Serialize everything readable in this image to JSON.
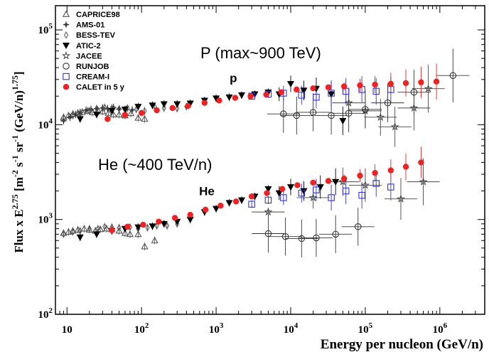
{
  "chart_data": {
    "type": "scatter",
    "xscale": "log",
    "yscale": "log",
    "xlim": [
      7,
      4000000
    ],
    "ylim": [
      100,
      180000
    ],
    "xlabel": "Energy per nucleon (GeV/n)",
    "ylabel_main": "Flux x E",
    "ylabel_exp": "2.75",
    "ylabel_unit": "[m",
    "ylabel_rest1": "-2",
    "ylabel_rest2": " s",
    "ylabel_rest3": "-1",
    "ylabel_rest4": " sr",
    "ylabel_rest5": "-1",
    "ylabel_rest6": " (GeV/n)",
    "ylabel_rest7": "1.75",
    "ylabel_rest8": "]",
    "x_ticks": [
      {
        "value": 10,
        "base": "10",
        "exp": ""
      },
      {
        "value": 100,
        "base": "10",
        "exp": "2"
      },
      {
        "value": 1000,
        "base": "10",
        "exp": "3"
      },
      {
        "value": 10000,
        "base": "10",
        "exp": "4"
      },
      {
        "value": 100000,
        "base": "10",
        "exp": "5"
      },
      {
        "value": 1000000,
        "base": "10",
        "exp": "6"
      }
    ],
    "y_ticks": [
      {
        "value": 100,
        "base": "10",
        "exp": "2"
      },
      {
        "value": 1000,
        "base": "10",
        "exp": "3"
      },
      {
        "value": 10000,
        "base": "10",
        "exp": "4"
      },
      {
        "value": 100000,
        "base": "10",
        "exp": "5"
      }
    ],
    "annotations": [
      {
        "id": "ann-p",
        "text": "P (max~900 TeV)"
      },
      {
        "id": "ann-he",
        "text": "He (~400 TeV/n)"
      },
      {
        "id": "lbl-p",
        "text": "p",
        "x": 1700,
        "y": 28000
      },
      {
        "id": "lbl-he",
        "text": "He",
        "x": 750,
        "y": 1800
      }
    ],
    "legend_position": "top-left",
    "series": [
      {
        "name": "CAPRICE98",
        "marker": "triangle-open",
        "color": "#555555",
        "points": [
          [
            9,
            12000
          ],
          [
            10.5,
            12500
          ],
          [
            12,
            13000
          ],
          [
            14,
            13300
          ],
          [
            16,
            13600
          ],
          [
            19,
            14000
          ],
          [
            22,
            13500
          ],
          [
            26,
            14200
          ],
          [
            30,
            13800
          ],
          [
            36,
            13300
          ],
          [
            42,
            12800
          ],
          [
            50,
            12800
          ],
          [
            60,
            12500
          ],
          [
            72,
            13200
          ],
          [
            90,
            11800
          ],
          [
            110,
            11500
          ],
          [
            9,
            720
          ],
          [
            10.5,
            740
          ],
          [
            12,
            760
          ],
          [
            14,
            780
          ],
          [
            17,
            800
          ],
          [
            20,
            780
          ],
          [
            24,
            760
          ],
          [
            28,
            790
          ],
          [
            34,
            800
          ],
          [
            40,
            790
          ],
          [
            50,
            760
          ],
          [
            60,
            720
          ],
          [
            70,
            700
          ],
          [
            90,
            700
          ],
          [
            110,
            520
          ],
          [
            150,
            600
          ]
        ]
      },
      {
        "name": "AMS-01",
        "marker": "plus",
        "color": "#333333",
        "points": [
          [
            9,
            11000
          ],
          [
            11,
            12000
          ],
          [
            13,
            12800
          ],
          [
            15,
            13500
          ],
          [
            18,
            14200
          ],
          [
            21,
            14500
          ],
          [
            25,
            14800
          ],
          [
            30,
            15000
          ],
          [
            35,
            14800
          ],
          [
            42,
            15200
          ],
          [
            50,
            14600
          ],
          [
            62,
            14500
          ],
          [
            75,
            14300
          ]
        ]
      },
      {
        "name": "BESS-TEV",
        "marker": "diamond-open",
        "color": "#555555",
        "points": [
          [
            9,
            11800
          ],
          [
            12,
            12500
          ],
          [
            15,
            13200
          ],
          [
            20,
            14000
          ],
          [
            25,
            14800
          ],
          [
            32,
            15200
          ],
          [
            40,
            15000
          ],
          [
            50,
            14700
          ],
          [
            65,
            15000
          ],
          [
            85,
            14500
          ],
          [
            110,
            14000
          ],
          [
            150,
            15500
          ],
          [
            200,
            15000
          ],
          [
            300,
            14800
          ],
          [
            400,
            15500
          ],
          [
            9,
            700
          ],
          [
            12,
            740
          ],
          [
            15,
            760
          ],
          [
            20,
            800
          ],
          [
            26,
            800
          ],
          [
            32,
            840
          ],
          [
            40,
            830
          ],
          [
            50,
            820
          ],
          [
            70,
            830
          ],
          [
            90,
            800
          ],
          [
            120,
            820
          ],
          [
            160,
            860
          ],
          [
            220,
            860
          ],
          [
            300,
            900
          ]
        ]
      },
      {
        "name": "ATIC-2",
        "marker": "triangle-down",
        "color": "#000000",
        "points": [
          [
            15,
            11500
          ],
          [
            25,
            12800
          ],
          [
            40,
            14000
          ],
          [
            60,
            14500
          ],
          [
            90,
            15500
          ],
          [
            140,
            16000
          ],
          [
            200,
            16500
          ],
          [
            300,
            16500
          ],
          [
            450,
            16800
          ],
          [
            700,
            18000
          ],
          [
            1000,
            19000
          ],
          [
            1500,
            19500
          ],
          [
            2200,
            20500
          ],
          [
            3300,
            21000
          ],
          [
            5000,
            22000
          ],
          [
            7000,
            21000
          ],
          [
            10000,
            27000
          ],
          [
            15000,
            23000
          ],
          [
            22000,
            24000
          ],
          [
            35000,
            21000
          ],
          [
            50000,
            11000
          ],
          [
            15,
            650
          ],
          [
            25,
            700
          ],
          [
            40,
            760
          ],
          [
            60,
            800
          ],
          [
            90,
            830
          ],
          [
            140,
            850
          ],
          [
            200,
            900
          ],
          [
            300,
            950
          ],
          [
            450,
            1000
          ],
          [
            700,
            1200
          ],
          [
            1000,
            1300
          ],
          [
            1500,
            1500
          ],
          [
            2200,
            1600
          ],
          [
            3300,
            1750
          ],
          [
            5000,
            2100
          ],
          [
            7000,
            1900
          ],
          [
            10000,
            2200
          ],
          [
            15000,
            2000
          ],
          [
            25000,
            2200
          ],
          [
            40000,
            2500
          ]
        ]
      },
      {
        "name": "JACEE",
        "marker": "star-open",
        "color": "#444444",
        "points": [
          [
            60000,
            17000
          ],
          [
            100000,
            14000
          ],
          [
            160000,
            12000
          ],
          [
            250000,
            9500
          ],
          [
            450000,
            15000
          ],
          [
            700000,
            24000
          ],
          [
            5000,
            1200
          ],
          [
            20000,
            1700
          ],
          [
            50000,
            2500
          ],
          [
            100000,
            2300
          ],
          [
            300000,
            1650
          ],
          [
            600000,
            2500
          ]
        ]
      },
      {
        "name": "RUNJOB",
        "marker": "circle-open",
        "color": "#333333",
        "points": [
          [
            8000,
            13000
          ],
          [
            12000,
            12500
          ],
          [
            20000,
            13500
          ],
          [
            35000,
            12500
          ],
          [
            60000,
            13200
          ],
          [
            100000,
            14500
          ],
          [
            200000,
            17000
          ],
          [
            450000,
            22000
          ],
          [
            1500000,
            33000
          ],
          [
            5000,
            710
          ],
          [
            8500,
            660
          ],
          [
            14000,
            630
          ],
          [
            22000,
            640
          ],
          [
            40000,
            700
          ],
          [
            80000,
            840
          ]
        ]
      },
      {
        "name": "CREAM-I",
        "marker": "square-open",
        "color": "#3333cc",
        "points": [
          [
            3000,
            20000
          ],
          [
            5000,
            21000
          ],
          [
            8000,
            21500
          ],
          [
            14000,
            20500
          ],
          [
            22000,
            19500
          ],
          [
            35000,
            21500
          ],
          [
            55000,
            22500
          ],
          [
            90000,
            23500
          ],
          [
            140000,
            22500
          ],
          [
            220000,
            23500
          ],
          [
            3000,
            1450
          ],
          [
            5000,
            1600
          ],
          [
            8000,
            1700
          ],
          [
            14000,
            1900
          ],
          [
            22000,
            2050
          ],
          [
            35000,
            1700
          ],
          [
            55000,
            2000
          ],
          [
            90000,
            1800
          ],
          [
            140000,
            2400
          ],
          [
            220000,
            2200
          ]
        ]
      },
      {
        "name": "CALET in 5 y",
        "marker": "circle-filled",
        "color": "#ee2222",
        "points": [
          [
            35,
            11500
          ],
          [
            60,
            12700
          ],
          [
            100,
            13300
          ],
          [
            160,
            14200
          ],
          [
            260,
            15000
          ],
          [
            420,
            15800
          ],
          [
            700,
            17000
          ],
          [
            1100,
            18000
          ],
          [
            1800,
            19200
          ],
          [
            2900,
            20000
          ],
          [
            4700,
            20800
          ],
          [
            7500,
            22000
          ],
          [
            12000,
            23500
          ],
          [
            20000,
            24200
          ],
          [
            32000,
            24800
          ],
          [
            52000,
            25300
          ],
          [
            85000,
            26000
          ],
          [
            135000,
            26500
          ],
          [
            220000,
            27000
          ],
          [
            350000,
            27500
          ],
          [
            560000,
            28000
          ],
          [
            900000,
            28500
          ],
          [
            40,
            770
          ],
          [
            65,
            840
          ],
          [
            105,
            880
          ],
          [
            170,
            950
          ],
          [
            280,
            1040
          ],
          [
            450,
            1120
          ],
          [
            720,
            1270
          ],
          [
            1150,
            1400
          ],
          [
            1850,
            1550
          ],
          [
            3000,
            1750
          ],
          [
            4800,
            1900
          ],
          [
            7700,
            2100
          ],
          [
            12300,
            2300
          ],
          [
            20000,
            2450
          ],
          [
            32000,
            2550
          ],
          [
            52000,
            2700
          ],
          [
            85000,
            2900
          ],
          [
            135000,
            3100
          ],
          [
            220000,
            3300
          ],
          [
            350000,
            3600
          ],
          [
            560000,
            4000
          ]
        ]
      }
    ]
  }
}
